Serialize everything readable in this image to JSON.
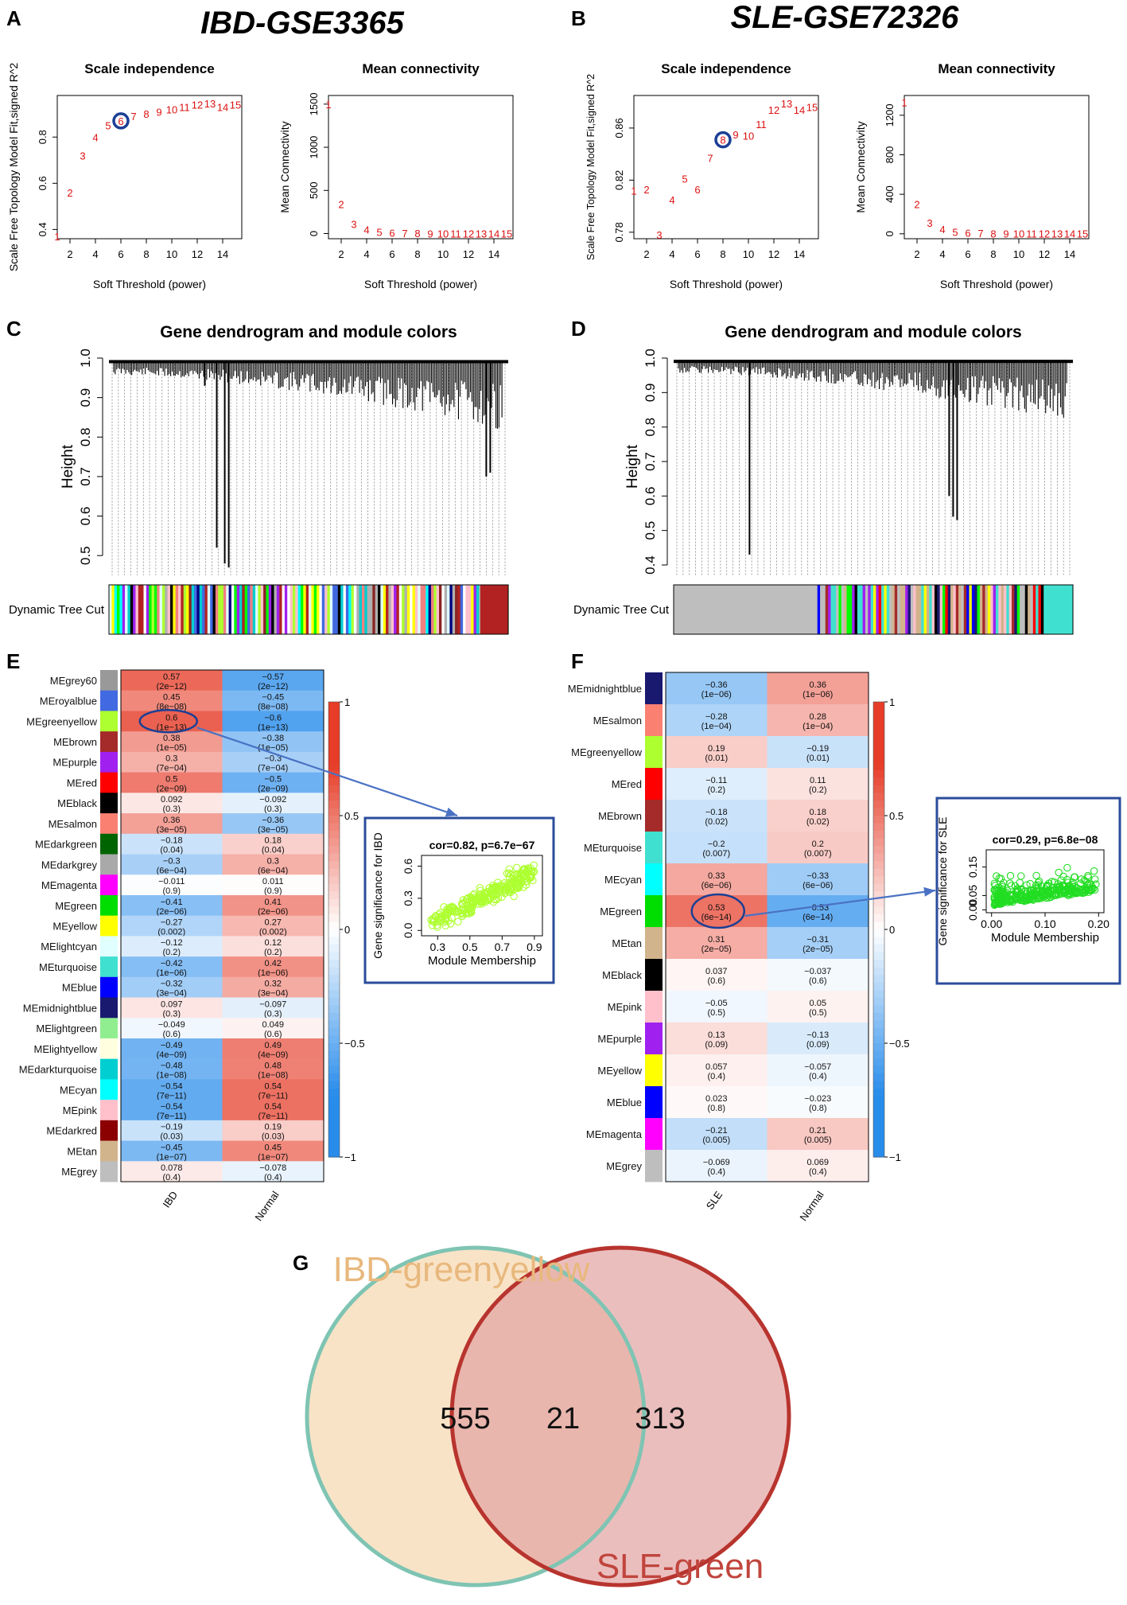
{
  "title_left": "IBD-GSE3365",
  "title_right": "SLE-GSE72326",
  "panel_labels": [
    "A",
    "B",
    "C",
    "D",
    "E",
    "F",
    "G"
  ],
  "chart_data": [
    {
      "id": "A1",
      "type": "scatter",
      "title": "Scale independence",
      "xlabel": "Soft Threshold (power)",
      "ylabel": "Scale Free Topology Model Fit,signed R^2",
      "xlim": [
        1,
        15.5
      ],
      "ylim": [
        0.36,
        0.98
      ],
      "xticks": [
        2,
        4,
        6,
        8,
        10,
        12,
        14
      ],
      "yticks": [
        0.4,
        0.6,
        0.8
      ],
      "points": [
        [
          1,
          0.37
        ],
        [
          2,
          0.56
        ],
        [
          3,
          0.72
        ],
        [
          4,
          0.8
        ],
        [
          5,
          0.85
        ],
        [
          6,
          0.87
        ],
        [
          7,
          0.89
        ],
        [
          8,
          0.9
        ],
        [
          9,
          0.91
        ],
        [
          10,
          0.92
        ],
        [
          11,
          0.93
        ],
        [
          12,
          0.94
        ],
        [
          13,
          0.945
        ],
        [
          14,
          0.93
        ],
        [
          15,
          0.94
        ]
      ],
      "highlight": 6
    },
    {
      "id": "A2",
      "type": "scatter",
      "title": "Mean connectivity",
      "xlabel": "Soft Threshold (power)",
      "ylabel": "Mean Connectivity",
      "xlim": [
        1,
        15.5
      ],
      "ylim": [
        -60,
        1600
      ],
      "xticks": [
        2,
        4,
        6,
        8,
        10,
        12,
        14
      ],
      "yticks": [
        0,
        500,
        1000,
        1500
      ],
      "points": [
        [
          1,
          1500
        ],
        [
          2,
          340
        ],
        [
          3,
          110
        ],
        [
          4,
          45
        ],
        [
          5,
          20
        ],
        [
          6,
          10
        ],
        [
          7,
          5
        ],
        [
          8,
          3
        ],
        [
          9,
          2
        ],
        [
          10,
          1
        ],
        [
          11,
          1
        ],
        [
          12,
          1
        ],
        [
          13,
          1
        ],
        [
          14,
          1
        ],
        [
          15,
          1
        ]
      ]
    },
    {
      "id": "B1",
      "type": "scatter",
      "title": "Scale independence",
      "xlabel": "Soft Threshold (power)",
      "ylabel": "Scale Free Topology Model Fit,signed R^2",
      "xlim": [
        1,
        15.5
      ],
      "ylim": [
        0.775,
        0.885
      ],
      "xticks": [
        2,
        4,
        6,
        8,
        10,
        12,
        14
      ],
      "yticks": [
        0.78,
        0.82,
        0.86
      ],
      "points": [
        [
          1,
          0.812
        ],
        [
          2,
          0.813
        ],
        [
          3,
          0.778
        ],
        [
          4,
          0.805
        ],
        [
          5,
          0.821
        ],
        [
          6,
          0.813
        ],
        [
          7,
          0.837
        ],
        [
          8,
          0.851
        ],
        [
          9,
          0.855
        ],
        [
          10,
          0.854
        ],
        [
          11,
          0.863
        ],
        [
          12,
          0.874
        ],
        [
          13,
          0.879
        ],
        [
          14,
          0.874
        ],
        [
          15,
          0.876
        ]
      ],
      "highlight": 8
    },
    {
      "id": "B2",
      "type": "scatter",
      "title": "Mean connectivity",
      "xlabel": "Soft Threshold (power)",
      "ylabel": "Mean Connectivity",
      "xlim": [
        1,
        15.5
      ],
      "ylim": [
        -50,
        1400
      ],
      "xticks": [
        2,
        4,
        6,
        8,
        10,
        12,
        14
      ],
      "yticks": [
        0,
        400,
        800,
        1200
      ],
      "points": [
        [
          1,
          1330
        ],
        [
          2,
          300
        ],
        [
          3,
          110
        ],
        [
          4,
          45
        ],
        [
          5,
          20
        ],
        [
          6,
          10
        ],
        [
          7,
          5
        ],
        [
          8,
          3
        ],
        [
          9,
          2
        ],
        [
          10,
          1
        ],
        [
          11,
          1
        ],
        [
          12,
          1
        ],
        [
          13,
          1
        ],
        [
          14,
          1
        ],
        [
          15,
          1
        ]
      ]
    },
    {
      "id": "C",
      "type": "dendrogram",
      "title": "Gene dendrogram and module colors",
      "ylabel": "Height",
      "yticks": [
        0.5,
        0.6,
        0.7,
        0.8,
        0.9,
        1.0
      ],
      "ylim": [
        0.45,
        1.0
      ],
      "colorbar_label": "Dynamic Tree Cut",
      "deep_branches": [
        {
          "pos": 0.27,
          "h": 0.52
        },
        {
          "pos": 0.29,
          "h": 0.48
        },
        {
          "pos": 0.3,
          "h": 0.47
        },
        {
          "pos": 0.24,
          "h": 0.93
        },
        {
          "pos": 0.945,
          "h": 0.7
        },
        {
          "pos": 0.955,
          "h": 0.71
        }
      ],
      "band_colors": [
        "#b0b0b0",
        "#4169e1",
        "#8b2323",
        "#a020f0",
        "#ffffff",
        "#00ced1",
        "#000000",
        "#f08080",
        "#adff2f",
        "#00ff00",
        "#000080",
        "#ffc0cb",
        "#ffff00",
        "#00ffff",
        "#e0ffff",
        "#b22222"
      ]
    },
    {
      "id": "D",
      "type": "dendrogram",
      "title": "Gene dendrogram and module colors",
      "ylabel": "Height",
      "yticks": [
        0.4,
        0.5,
        0.6,
        0.7,
        0.8,
        0.9,
        1.0
      ],
      "ylim": [
        0.37,
        1.0
      ],
      "colorbar_label": "Dynamic Tree Cut",
      "deep_branches": [
        {
          "pos": 0.19,
          "h": 0.43
        },
        {
          "pos": 0.7,
          "h": 0.54
        },
        {
          "pos": 0.71,
          "h": 0.53
        },
        {
          "pos": 0.69,
          "h": 0.6
        }
      ],
      "band_colors": [
        "#bebebe",
        "#bebebe",
        "#bebebe",
        "#40e0d0",
        "#0000ff",
        "#ff0000",
        "#ffff00",
        "#a020f0",
        "#000000",
        "#ffc0cb",
        "#d2b48c",
        "#00ff00",
        "#a52a2a",
        "#191970",
        "#40e0d0"
      ]
    },
    {
      "id": "E",
      "type": "heatmap",
      "columns": [
        "IBD",
        "Normal"
      ],
      "colorbar_ticks": [
        "1",
        "0.5",
        "0",
        "−0.5",
        "−1"
      ],
      "rows": [
        {
          "name": "MEgrey60",
          "color": "#999999",
          "v": [
            "0.57",
            "−0.57"
          ],
          "p": [
            "(2e−12)",
            "(2e−12)"
          ]
        },
        {
          "name": "MEroyalblue",
          "color": "#4169e1",
          "v": [
            "0.45",
            "−0.45"
          ],
          "p": [
            "(8e−08)",
            "(8e−08)"
          ]
        },
        {
          "name": "MEgreenyellow",
          "color": "#adff2f",
          "v": [
            "0.6",
            "−0.6"
          ],
          "p": [
            "(1e−13)",
            "(1e−13)"
          ]
        },
        {
          "name": "MEbrown",
          "color": "#a52a2a",
          "v": [
            "0.38",
            "−0.38"
          ],
          "p": [
            "(1e−05)",
            "(1e−05)"
          ]
        },
        {
          "name": "MEpurple",
          "color": "#a020f0",
          "v": [
            "0.3",
            "−0.3"
          ],
          "p": [
            "(7e−04)",
            "(7e−04)"
          ]
        },
        {
          "name": "MEred",
          "color": "#ff0000",
          "v": [
            "0.5",
            "−0.5"
          ],
          "p": [
            "(2e−09)",
            "(2e−09)"
          ]
        },
        {
          "name": "MEblack",
          "color": "#000000",
          "v": [
            "0.092",
            "−0.092"
          ],
          "p": [
            "(0.3)",
            "(0.3)"
          ]
        },
        {
          "name": "MEsalmon",
          "color": "#fa8072",
          "v": [
            "0.36",
            "−0.36"
          ],
          "p": [
            "(3e−05)",
            "(3e−05)"
          ]
        },
        {
          "name": "MEdarkgreen",
          "color": "#006400",
          "v": [
            "−0.18",
            "0.18"
          ],
          "p": [
            "(0.04)",
            "(0.04)"
          ]
        },
        {
          "name": "MEdarkgrey",
          "color": "#a9a9a9",
          "v": [
            "−0.3",
            "0.3"
          ],
          "p": [
            "(6e−04)",
            "(6e−04)"
          ]
        },
        {
          "name": "MEmagenta",
          "color": "#ff00ff",
          "v": [
            "−0.011",
            "0.011"
          ],
          "p": [
            "(0.9)",
            "(0.9)"
          ]
        },
        {
          "name": "MEgreen",
          "color": "#00dd00",
          "v": [
            "−0.41",
            "0.41"
          ],
          "p": [
            "(2e−06)",
            "(2e−06)"
          ]
        },
        {
          "name": "MEyellow",
          "color": "#ffff00",
          "v": [
            "−0.27",
            "0.27"
          ],
          "p": [
            "(0.002)",
            "(0.002)"
          ]
        },
        {
          "name": "MElightcyan",
          "color": "#e0ffff",
          "v": [
            "−0.12",
            "0.12"
          ],
          "p": [
            "(0.2)",
            "(0.2)"
          ]
        },
        {
          "name": "MEturquoise",
          "color": "#40e0d0",
          "v": [
            "−0.42",
            "0.42"
          ],
          "p": [
            "(1e−06)",
            "(1e−06)"
          ]
        },
        {
          "name": "MEblue",
          "color": "#0000ff",
          "v": [
            "−0.32",
            "0.32"
          ],
          "p": [
            "(3e−04)",
            "(3e−04)"
          ]
        },
        {
          "name": "MEmidnightblue",
          "color": "#191970",
          "v": [
            "0.097",
            "−0.097"
          ],
          "p": [
            "(0.3)",
            "(0.3)"
          ]
        },
        {
          "name": "MElightgreen",
          "color": "#90ee90",
          "v": [
            "−0.049",
            "0.049"
          ],
          "p": [
            "(0.6)",
            "(0.6)"
          ]
        },
        {
          "name": "MElightyellow",
          "color": "#ffffe0",
          "v": [
            "−0.49",
            "0.49"
          ],
          "p": [
            "(4e−09)",
            "(4e−09)"
          ]
        },
        {
          "name": "MEdarkturquoise",
          "color": "#00ced1",
          "v": [
            "−0.48",
            "0.48"
          ],
          "p": [
            "(1e−08)",
            "(1e−08)"
          ]
        },
        {
          "name": "MEcyan",
          "color": "#00ffff",
          "v": [
            "−0.54",
            "0.54"
          ],
          "p": [
            "(7e−11)",
            "(7e−11)"
          ]
        },
        {
          "name": "MEpink",
          "color": "#ffc0cb",
          "v": [
            "−0.54",
            "0.54"
          ],
          "p": [
            "(7e−11)",
            "(7e−11)"
          ]
        },
        {
          "name": "MEdarkred",
          "color": "#8b0000",
          "v": [
            "−0.19",
            "0.19"
          ],
          "p": [
            "(0.03)",
            "(0.03)"
          ]
        },
        {
          "name": "MEtan",
          "color": "#d2b48c",
          "v": [
            "−0.45",
            "0.45"
          ],
          "p": [
            "(1e−07)",
            "(1e−07)"
          ]
        },
        {
          "name": "MEgrey",
          "color": "#bebebe",
          "v": [
            "0.078",
            "−0.078"
          ],
          "p": [
            "(0.4)",
            "(0.4)"
          ]
        }
      ],
      "highlight_row": 2
    },
    {
      "id": "F",
      "type": "heatmap",
      "columns": [
        "SLE",
        "Normal"
      ],
      "colorbar_ticks": [
        "1",
        "0.5",
        "0",
        "−0.5",
        "−1"
      ],
      "rows": [
        {
          "name": "MEmidnightblue",
          "color": "#191970",
          "v": [
            "−0.36",
            "0.36"
          ],
          "p": [
            "(1e−06)",
            "(1e−06)"
          ]
        },
        {
          "name": "MEsalmon",
          "color": "#fa8072",
          "v": [
            "−0.28",
            "0.28"
          ],
          "p": [
            "(1e−04)",
            "(1e−04)"
          ]
        },
        {
          "name": "MEgreenyellow",
          "color": "#adff2f",
          "v": [
            "0.19",
            "−0.19"
          ],
          "p": [
            "(0.01)",
            "(0.01)"
          ]
        },
        {
          "name": "MEred",
          "color": "#ff0000",
          "v": [
            "−0.11",
            "0.11"
          ],
          "p": [
            "(0.2)",
            "(0.2)"
          ]
        },
        {
          "name": "MEbrown",
          "color": "#a52a2a",
          "v": [
            "−0.18",
            "0.18"
          ],
          "p": [
            "(0.02)",
            "(0.02)"
          ]
        },
        {
          "name": "MEturquoise",
          "color": "#40e0d0",
          "v": [
            "−0.2",
            "0.2"
          ],
          "p": [
            "(0.007)",
            "(0.007)"
          ]
        },
        {
          "name": "MEcyan",
          "color": "#00ffff",
          "v": [
            "0.33",
            "−0.33"
          ],
          "p": [
            "(6e−06)",
            "(6e−06)"
          ]
        },
        {
          "name": "MEgreen",
          "color": "#00dd00",
          "v": [
            "0.53",
            "−0.53"
          ],
          "p": [
            "(6e−14)",
            "(6e−14)"
          ]
        },
        {
          "name": "MEtan",
          "color": "#d2b48c",
          "v": [
            "0.31",
            "−0.31"
          ],
          "p": [
            "(2e−05)",
            "(2e−05)"
          ]
        },
        {
          "name": "MEblack",
          "color": "#000000",
          "v": [
            "0.037",
            "−0.037"
          ],
          "p": [
            "(0.6)",
            "(0.6)"
          ]
        },
        {
          "name": "MEpink",
          "color": "#ffc0cb",
          "v": [
            "−0.05",
            "0.05"
          ],
          "p": [
            "(0.5)",
            "(0.5)"
          ]
        },
        {
          "name": "MEpurple",
          "color": "#a020f0",
          "v": [
            "0.13",
            "−0.13"
          ],
          "p": [
            "(0.09)",
            "(0.09)"
          ]
        },
        {
          "name": "MEyellow",
          "color": "#ffff00",
          "v": [
            "0.057",
            "−0.057"
          ],
          "p": [
            "(0.4)",
            "(0.4)"
          ]
        },
        {
          "name": "MEblue",
          "color": "#0000ff",
          "v": [
            "0.023",
            "−0.023"
          ],
          "p": [
            "(0.8)",
            "(0.8)"
          ]
        },
        {
          "name": "MEmagenta",
          "color": "#ff00ff",
          "v": [
            "−0.21",
            "0.21"
          ],
          "p": [
            "(0.005)",
            "(0.005)"
          ]
        },
        {
          "name": "MEgrey",
          "color": "#bebebe",
          "v": [
            "−0.069",
            "0.069"
          ],
          "p": [
            "(0.4)",
            "(0.4)"
          ]
        }
      ],
      "highlight_row": 7
    },
    {
      "id": "E_inset",
      "type": "scatter",
      "title": "cor=0.82, p=6.7e−67",
      "xlabel": "Module Membership",
      "ylabel": "Gene significance for  IBD",
      "xlim": [
        0.2,
        0.95
      ],
      "ylim": [
        -0.05,
        0.7
      ],
      "xticks": [
        0.3,
        0.5,
        0.7,
        0.9
      ],
      "yticks": [
        0.0,
        0.3,
        0.6
      ],
      "color": "#adff2f",
      "n": 260,
      "corr": 0.82
    },
    {
      "id": "F_inset",
      "type": "scatter",
      "title": "cor=0.29, p=6.8e−08",
      "xlabel": "Module Membership",
      "ylabel": "Gene significance for  SLE",
      "xlim": [
        -0.01,
        0.21
      ],
      "ylim": [
        -0.01,
        0.21
      ],
      "xticks": [
        0.0,
        0.1,
        0.2
      ],
      "yticks": [
        0.0,
        0.05,
        0.15
      ],
      "xtick_labels": [
        "0.00",
        "0.10",
        "0.20"
      ],
      "ytick_labels": [
        "0.00",
        "0.05",
        "0.15"
      ],
      "color": "#22dd22",
      "n": 330,
      "corr": 0.29
    },
    {
      "id": "G",
      "type": "venn",
      "sets": [
        {
          "label": "IBD-greenyellow",
          "only": "555",
          "fill": "#f9e2c4",
          "edge": "#7fc4b3",
          "label_color": "#e8b87d"
        },
        {
          "label": "SLE-green",
          "only": "313",
          "fill": "#e3a3a3",
          "edge": "#b8342e",
          "label_color": "#c0453d"
        }
      ],
      "overlap": "21"
    }
  ]
}
